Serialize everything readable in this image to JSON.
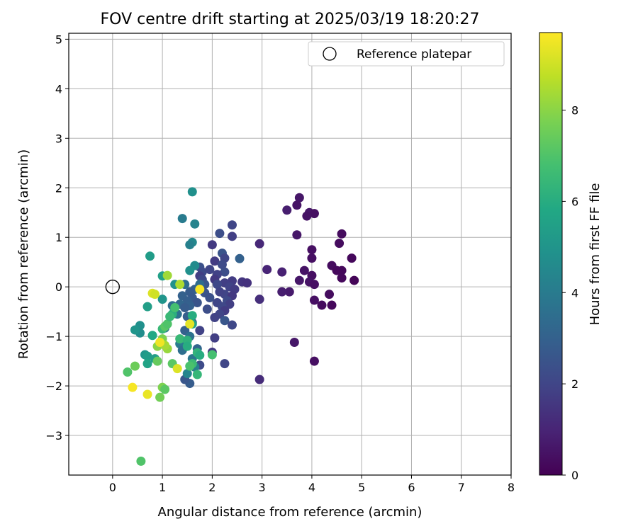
{
  "chart_data": {
    "type": "scatter",
    "title": "FOV centre drift starting at 2025/03/19 18:20:27",
    "xlabel": "Angular distance from reference (arcmin)",
    "ylabel": "Rotation from reference (arcmin)",
    "xlim": [
      -0.88,
      8.0
    ],
    "ylim": [
      -3.8,
      5.12
    ],
    "xticks": [
      0,
      1,
      2,
      3,
      4,
      5,
      6,
      7,
      8
    ],
    "yticks": [
      -3,
      -2,
      -1,
      0,
      1,
      2,
      3,
      4,
      5
    ],
    "grid": true,
    "legend": {
      "position": "top-right",
      "entries": [
        "Reference platepar"
      ]
    },
    "reference_point": {
      "x": 0.0,
      "y": 0.0,
      "label": "Reference platepar"
    },
    "colorbar": {
      "label": "Hours from first FF file",
      "colormap": "viridis",
      "range": [
        0,
        9.7
      ],
      "ticks": [
        0,
        2,
        4,
        6,
        8
      ]
    },
    "points": [
      {
        "x": 3.75,
        "y": 1.8,
        "h": 0.6
      },
      {
        "x": 3.7,
        "y": 1.65,
        "h": 0.5
      },
      {
        "x": 3.5,
        "y": 1.55,
        "h": 0.8
      },
      {
        "x": 3.95,
        "y": 1.5,
        "h": 0.6
      },
      {
        "x": 4.05,
        "y": 1.48,
        "h": 0.4
      },
      {
        "x": 3.9,
        "y": 1.43,
        "h": 0.5
      },
      {
        "x": 4.6,
        "y": 1.07,
        "h": 0.3
      },
      {
        "x": 3.7,
        "y": 1.05,
        "h": 0.6
      },
      {
        "x": 4.55,
        "y": 0.88,
        "h": 0.3
      },
      {
        "x": 4.0,
        "y": 0.75,
        "h": 0.4
      },
      {
        "x": 4.0,
        "y": 0.58,
        "h": 0.4
      },
      {
        "x": 4.8,
        "y": 0.58,
        "h": 0.2
      },
      {
        "x": 4.4,
        "y": 0.43,
        "h": 0.3
      },
      {
        "x": 4.5,
        "y": 0.33,
        "h": 0.2
      },
      {
        "x": 4.6,
        "y": 0.33,
        "h": 0.2
      },
      {
        "x": 3.85,
        "y": 0.33,
        "h": 0.5
      },
      {
        "x": 4.0,
        "y": 0.23,
        "h": 0.4
      },
      {
        "x": 4.6,
        "y": 0.18,
        "h": 0.2
      },
      {
        "x": 4.85,
        "y": 0.13,
        "h": 0.1
      },
      {
        "x": 3.75,
        "y": 0.13,
        "h": 0.6
      },
      {
        "x": 3.95,
        "y": 0.1,
        "h": 0.5
      },
      {
        "x": 4.05,
        "y": 0.05,
        "h": 0.4
      },
      {
        "x": 4.35,
        "y": -0.15,
        "h": 0.3
      },
      {
        "x": 4.05,
        "y": -0.27,
        "h": 0.4
      },
      {
        "x": 4.2,
        "y": -0.37,
        "h": 0.3
      },
      {
        "x": 4.4,
        "y": -0.37,
        "h": 0.2
      },
      {
        "x": 3.55,
        "y": -0.1,
        "h": 0.7
      },
      {
        "x": 3.4,
        "y": -0.1,
        "h": 0.8
      },
      {
        "x": 3.1,
        "y": 0.35,
        "h": 1.0
      },
      {
        "x": 3.4,
        "y": 0.3,
        "h": 0.9
      },
      {
        "x": 2.95,
        "y": 0.87,
        "h": 1.1
      },
      {
        "x": 3.65,
        "y": -1.12,
        "h": 0.6
      },
      {
        "x": 4.05,
        "y": -1.5,
        "h": 0.4
      },
      {
        "x": 2.95,
        "y": -1.87,
        "h": 1.2
      },
      {
        "x": 2.95,
        "y": -0.25,
        "h": 1.3
      },
      {
        "x": 2.4,
        "y": 1.25,
        "h": 2.0
      },
      {
        "x": 2.4,
        "y": 1.02,
        "h": 1.8
      },
      {
        "x": 2.15,
        "y": 1.08,
        "h": 2.3
      },
      {
        "x": 2.0,
        "y": 0.85,
        "h": 1.6
      },
      {
        "x": 2.2,
        "y": 0.68,
        "h": 2.5
      },
      {
        "x": 2.25,
        "y": 0.58,
        "h": 2.0
      },
      {
        "x": 2.55,
        "y": 0.57,
        "h": 3.0
      },
      {
        "x": 2.05,
        "y": 0.52,
        "h": 1.7
      },
      {
        "x": 2.2,
        "y": 0.45,
        "h": 2.2
      },
      {
        "x": 1.75,
        "y": 0.4,
        "h": 2.4
      },
      {
        "x": 1.8,
        "y": 0.3,
        "h": 2.2
      },
      {
        "x": 1.95,
        "y": 0.35,
        "h": 2.0
      },
      {
        "x": 2.25,
        "y": 0.3,
        "h": 2.3
      },
      {
        "x": 2.1,
        "y": 0.25,
        "h": 1.9
      },
      {
        "x": 1.75,
        "y": 0.22,
        "h": 1.8
      },
      {
        "x": 1.8,
        "y": 0.15,
        "h": 2.1
      },
      {
        "x": 2.05,
        "y": 0.15,
        "h": 1.6
      },
      {
        "x": 2.4,
        "y": 0.12,
        "h": 1.7
      },
      {
        "x": 2.6,
        "y": 0.1,
        "h": 1.5
      },
      {
        "x": 2.7,
        "y": 0.08,
        "h": 1.4
      },
      {
        "x": 2.25,
        "y": 0.08,
        "h": 1.8
      },
      {
        "x": 1.85,
        "y": 0.05,
        "h": 2.6
      },
      {
        "x": 2.1,
        "y": 0.05,
        "h": 2.1
      },
      {
        "x": 2.35,
        "y": 0.0,
        "h": 1.9
      },
      {
        "x": 2.45,
        "y": -0.05,
        "h": 1.7
      },
      {
        "x": 1.85,
        "y": -0.12,
        "h": 2.5
      },
      {
        "x": 2.25,
        "y": -0.15,
        "h": 2.0
      },
      {
        "x": 2.15,
        "y": -0.1,
        "h": 1.9
      },
      {
        "x": 2.4,
        "y": -0.18,
        "h": 1.6
      },
      {
        "x": 1.95,
        "y": -0.22,
        "h": 2.4
      },
      {
        "x": 2.3,
        "y": -0.28,
        "h": 2.2
      },
      {
        "x": 2.1,
        "y": -0.32,
        "h": 2.0
      },
      {
        "x": 2.35,
        "y": -0.35,
        "h": 1.8
      },
      {
        "x": 2.2,
        "y": -0.4,
        "h": 2.1
      },
      {
        "x": 1.9,
        "y": -0.45,
        "h": 2.3
      },
      {
        "x": 2.25,
        "y": -0.48,
        "h": 1.7
      },
      {
        "x": 2.15,
        "y": -0.55,
        "h": 2.0
      },
      {
        "x": 2.05,
        "y": -0.62,
        "h": 1.9
      },
      {
        "x": 2.25,
        "y": -0.68,
        "h": 2.6
      },
      {
        "x": 2.4,
        "y": -0.77,
        "h": 2.1
      },
      {
        "x": 1.75,
        "y": -0.88,
        "h": 1.9
      },
      {
        "x": 1.6,
        "y": -0.72,
        "h": 2.4
      },
      {
        "x": 2.05,
        "y": -1.03,
        "h": 1.8
      },
      {
        "x": 2.0,
        "y": -1.32,
        "h": 1.6
      },
      {
        "x": 2.25,
        "y": -1.55,
        "h": 2.0
      },
      {
        "x": 1.75,
        "y": -1.58,
        "h": 2.2
      },
      {
        "x": 1.55,
        "y": -1.95,
        "h": 2.8
      },
      {
        "x": 1.45,
        "y": -1.87,
        "h": 2.6
      },
      {
        "x": 1.65,
        "y": -0.05,
        "h": 3.0
      },
      {
        "x": 1.55,
        "y": -0.1,
        "h": 2.8
      },
      {
        "x": 1.45,
        "y": 0.05,
        "h": 3.5
      },
      {
        "x": 1.4,
        "y": -0.18,
        "h": 3.0
      },
      {
        "x": 1.6,
        "y": -0.22,
        "h": 2.7
      },
      {
        "x": 1.5,
        "y": -0.28,
        "h": 2.9
      },
      {
        "x": 1.7,
        "y": -0.32,
        "h": 2.5
      },
      {
        "x": 1.35,
        "y": -0.35,
        "h": 3.2
      },
      {
        "x": 1.55,
        "y": -0.38,
        "h": 3.0
      },
      {
        "x": 1.2,
        "y": -0.38,
        "h": 3.4
      },
      {
        "x": 1.45,
        "y": -0.42,
        "h": 2.8
      },
      {
        "x": 1.3,
        "y": -0.55,
        "h": 3.6
      },
      {
        "x": 1.5,
        "y": -0.6,
        "h": 2.9
      },
      {
        "x": 1.05,
        "y": -0.83,
        "h": 3.8
      },
      {
        "x": 1.45,
        "y": -0.88,
        "h": 3.0
      },
      {
        "x": 1.55,
        "y": -1.0,
        "h": 3.6
      },
      {
        "x": 1.35,
        "y": -1.15,
        "h": 4.0
      },
      {
        "x": 1.4,
        "y": -1.28,
        "h": 3.5
      },
      {
        "x": 1.7,
        "y": -1.25,
        "h": 3.2
      },
      {
        "x": 1.6,
        "y": -1.45,
        "h": 3.8
      },
      {
        "x": 1.65,
        "y": -1.62,
        "h": 4.2
      },
      {
        "x": 1.5,
        "y": -1.75,
        "h": 4.4
      },
      {
        "x": 1.6,
        "y": 0.9,
        "h": 4.5
      },
      {
        "x": 1.55,
        "y": 0.85,
        "h": 4.2
      },
      {
        "x": 1.4,
        "y": 1.38,
        "h": 4.0
      },
      {
        "x": 1.65,
        "y": 1.27,
        "h": 4.3
      },
      {
        "x": 1.6,
        "y": 1.92,
        "h": 4.8
      },
      {
        "x": 1.65,
        "y": 0.43,
        "h": 4.6
      },
      {
        "x": 1.55,
        "y": 0.33,
        "h": 4.8
      },
      {
        "x": 1.25,
        "y": 0.05,
        "h": 4.9
      },
      {
        "x": 1.75,
        "y": 0.05,
        "h": 3.4
      },
      {
        "x": 0.75,
        "y": 0.62,
        "h": 5.3
      },
      {
        "x": 1.0,
        "y": 0.22,
        "h": 5.5
      },
      {
        "x": 1.6,
        "y": -0.58,
        "h": 6.0
      },
      {
        "x": 1.6,
        "y": -0.75,
        "h": 5.6
      },
      {
        "x": 1.2,
        "y": -0.55,
        "h": 6.1
      },
      {
        "x": 0.7,
        "y": -0.4,
        "h": 5.4
      },
      {
        "x": 1.0,
        "y": -0.25,
        "h": 5.0
      },
      {
        "x": 0.55,
        "y": -0.78,
        "h": 4.8
      },
      {
        "x": 0.55,
        "y": -0.93,
        "h": 4.7
      },
      {
        "x": 0.45,
        "y": -0.87,
        "h": 5.0
      },
      {
        "x": 0.65,
        "y": -1.37,
        "h": 5.0
      },
      {
        "x": 0.7,
        "y": -1.4,
        "h": 5.3
      },
      {
        "x": 0.85,
        "y": -1.45,
        "h": 5.4
      },
      {
        "x": 0.7,
        "y": -1.55,
        "h": 5.6
      },
      {
        "x": 0.8,
        "y": -0.98,
        "h": 5.8
      },
      {
        "x": 1.0,
        "y": -0.85,
        "h": 6.5
      },
      {
        "x": 1.05,
        "y": -0.8,
        "h": 7.2
      },
      {
        "x": 1.1,
        "y": -0.75,
        "h": 7.0
      },
      {
        "x": 1.25,
        "y": -0.42,
        "h": 6.8
      },
      {
        "x": 1.15,
        "y": -0.6,
        "h": 6.5
      },
      {
        "x": 1.35,
        "y": -1.05,
        "h": 6.5
      },
      {
        "x": 1.5,
        "y": -1.08,
        "h": 6.2
      },
      {
        "x": 1.5,
        "y": -1.2,
        "h": 6.0
      },
      {
        "x": 1.7,
        "y": -1.33,
        "h": 6.3
      },
      {
        "x": 1.75,
        "y": -1.38,
        "h": 6.0
      },
      {
        "x": 2.0,
        "y": -1.37,
        "h": 6.8
      },
      {
        "x": 1.6,
        "y": -1.55,
        "h": 6.6
      },
      {
        "x": 1.55,
        "y": -1.6,
        "h": 6.9
      },
      {
        "x": 1.7,
        "y": -1.77,
        "h": 6.4
      },
      {
        "x": 1.2,
        "y": -1.55,
        "h": 7.2
      },
      {
        "x": 0.9,
        "y": -1.5,
        "h": 7.4
      },
      {
        "x": 1.0,
        "y": -1.05,
        "h": 7.8
      },
      {
        "x": 1.1,
        "y": -1.25,
        "h": 8.2
      },
      {
        "x": 0.9,
        "y": -1.2,
        "h": 8.0
      },
      {
        "x": 1.05,
        "y": -1.18,
        "h": 8.4
      },
      {
        "x": 1.3,
        "y": -1.65,
        "h": 9.2
      },
      {
        "x": 0.95,
        "y": -1.12,
        "h": 9.5
      },
      {
        "x": 0.3,
        "y": -1.72,
        "h": 7.0
      },
      {
        "x": 0.45,
        "y": -1.6,
        "h": 7.5
      },
      {
        "x": 1.0,
        "y": -2.03,
        "h": 7.8
      },
      {
        "x": 1.05,
        "y": -2.07,
        "h": 7.2
      },
      {
        "x": 0.95,
        "y": -2.23,
        "h": 7.6
      },
      {
        "x": 0.4,
        "y": -2.03,
        "h": 9.6
      },
      {
        "x": 0.7,
        "y": -2.17,
        "h": 9.4
      },
      {
        "x": 1.1,
        "y": 0.23,
        "h": 8.3
      },
      {
        "x": 0.8,
        "y": -0.13,
        "h": 9.2
      },
      {
        "x": 0.85,
        "y": -0.15,
        "h": 9.0
      },
      {
        "x": 1.55,
        "y": -0.75,
        "h": 9.3
      },
      {
        "x": 1.35,
        "y": 0.05,
        "h": 8.5
      },
      {
        "x": 1.75,
        "y": -0.05,
        "h": 9.6
      },
      {
        "x": 0.57,
        "y": -3.52,
        "h": 7.0
      }
    ]
  }
}
